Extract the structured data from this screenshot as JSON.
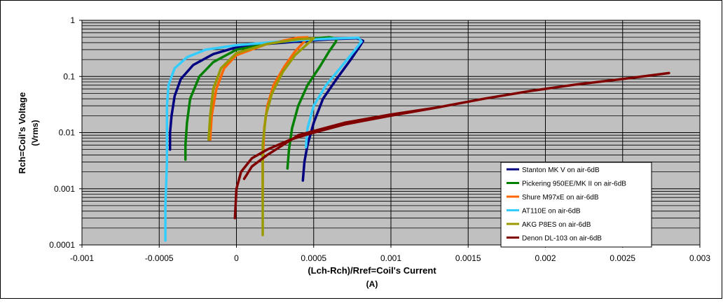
{
  "chart_data": {
    "type": "line",
    "title": "",
    "xlabel_line1": "(Lch-Rch)/Rref=Coil's Current",
    "xlabel_line2": "(A)",
    "ylabel_line1": "Rch=Coil's Voltage",
    "ylabel_line2": "(Vrms)",
    "x_scale": "linear",
    "y_scale": "log",
    "xlim": [
      -0.001,
      0.003
    ],
    "ylim": [
      0.0001,
      1
    ],
    "x_ticks": [
      "-0.001",
      "-0.0005",
      "0",
      "0.0005",
      "0.001",
      "0.0015",
      "0.002",
      "0.0025",
      "0.003"
    ],
    "x_tick_values": [
      -0.001,
      -0.0005,
      0,
      0.0005,
      0.001,
      0.0015,
      0.002,
      0.0025,
      0.003
    ],
    "y_ticks": [
      "1",
      "0.1",
      "0.01",
      "0.001",
      "0.0001"
    ],
    "y_tick_values": [
      1,
      0.1,
      0.01,
      0.001,
      0.0001
    ],
    "grid": "major and minor horizontal, major vertical",
    "legend_position": "bottom-right inside plot",
    "plot_background": "#c0c0c0",
    "series": [
      {
        "name": "Stanton MK V on air-6dB",
        "color": "#000080",
        "points": [
          [
            0.00043,
            0.0014
          ],
          [
            0.00044,
            0.003
          ],
          [
            0.00046,
            0.006
          ],
          [
            0.0005,
            0.015
          ],
          [
            0.00056,
            0.04
          ],
          [
            0.00066,
            0.1
          ],
          [
            0.00074,
            0.2
          ],
          [
            0.0008,
            0.35
          ],
          [
            0.00082,
            0.43
          ],
          [
            0.00078,
            0.48
          ],
          [
            0.0006,
            0.46
          ],
          [
            0.0004,
            0.42
          ],
          [
            0.0002,
            0.38
          ],
          [
            0.0,
            0.33
          ],
          [
            -0.00015,
            0.25
          ],
          [
            -0.00028,
            0.16
          ],
          [
            -0.00036,
            0.09
          ],
          [
            -0.0004,
            0.045
          ],
          [
            -0.00042,
            0.02
          ],
          [
            -0.00043,
            0.01
          ],
          [
            -0.00043,
            0.005
          ]
        ]
      },
      {
        "name": "Pickering 950EE/MK II on air-6dB",
        "color": "#008000",
        "points": [
          [
            0.00033,
            0.0023
          ],
          [
            0.00034,
            0.005
          ],
          [
            0.00036,
            0.012
          ],
          [
            0.0004,
            0.03
          ],
          [
            0.00046,
            0.07
          ],
          [
            0.00054,
            0.15
          ],
          [
            0.0006,
            0.28
          ],
          [
            0.00064,
            0.4
          ],
          [
            0.00065,
            0.47
          ],
          [
            0.0006,
            0.5
          ],
          [
            0.0004,
            0.45
          ],
          [
            0.0002,
            0.38
          ],
          [
            0.0,
            0.3
          ],
          [
            -0.00015,
            0.18
          ],
          [
            -0.00024,
            0.1
          ],
          [
            -0.0003,
            0.04
          ],
          [
            -0.00032,
            0.015
          ],
          [
            -0.00033,
            0.006
          ],
          [
            -0.00033,
            0.0033
          ]
        ]
      },
      {
        "name": "Shure M97xE on air-6dB",
        "color": "#ff6600",
        "points": [
          [
            0.00017,
            0.0006
          ],
          [
            0.00017,
            0.003
          ],
          [
            0.00018,
            0.012
          ],
          [
            0.0002,
            0.03
          ],
          [
            0.00024,
            0.07
          ],
          [
            0.00031,
            0.15
          ],
          [
            0.00038,
            0.28
          ],
          [
            0.00044,
            0.42
          ],
          [
            0.00046,
            0.5
          ],
          [
            0.0004,
            0.49
          ],
          [
            0.0002,
            0.38
          ],
          [
            0.0,
            0.24
          ],
          [
            -8e-05,
            0.14
          ],
          [
            -0.00013,
            0.06
          ],
          [
            -0.00016,
            0.02
          ],
          [
            -0.00017,
            0.0075
          ]
        ]
      },
      {
        "name": "AT110E on air-6dB",
        "color": "#33ccff",
        "points": [
          [
            0.00045,
            0.0055
          ],
          [
            0.00046,
            0.012
          ],
          [
            0.0005,
            0.03
          ],
          [
            0.00058,
            0.07
          ],
          [
            0.00068,
            0.15
          ],
          [
            0.00076,
            0.28
          ],
          [
            0.00081,
            0.42
          ],
          [
            0.00079,
            0.49
          ],
          [
            0.0006,
            0.47
          ],
          [
            0.0004,
            0.44
          ],
          [
            0.0002,
            0.4
          ],
          [
            0.0,
            0.36
          ],
          [
            -0.0002,
            0.3
          ],
          [
            -0.00032,
            0.22
          ],
          [
            -0.0004,
            0.14
          ],
          [
            -0.00044,
            0.07
          ],
          [
            -0.00045,
            0.03
          ],
          [
            -0.00045,
            0.01
          ],
          [
            -0.00045,
            0.003
          ],
          [
            -0.00046,
            0.0005
          ],
          [
            -0.00046,
            0.00012
          ]
        ]
      },
      {
        "name": "AKG P8ES on air-6dB",
        "color": "#999900",
        "points": [
          [
            0.00017,
            0.00015
          ],
          [
            0.00017,
            0.001
          ],
          [
            0.00017,
            0.006
          ],
          [
            0.00019,
            0.02
          ],
          [
            0.00023,
            0.05
          ],
          [
            0.0003,
            0.12
          ],
          [
            0.00038,
            0.24
          ],
          [
            0.00046,
            0.38
          ],
          [
            0.0005,
            0.48
          ],
          [
            0.0004,
            0.46
          ],
          [
            0.0002,
            0.38
          ],
          [
            0.0,
            0.26
          ],
          [
            -0.0001,
            0.14
          ],
          [
            -0.00015,
            0.06
          ],
          [
            -0.00017,
            0.02
          ],
          [
            -0.00018,
            0.0075
          ]
        ]
      },
      {
        "name": "Denon DL-103 on air-6dB",
        "color": "#800000",
        "points": [
          [
            -1e-05,
            0.0003
          ],
          [
            0.0,
            0.001
          ],
          [
            3e-05,
            0.002
          ],
          [
            0.0001,
            0.0035
          ],
          [
            0.0002,
            0.005
          ],
          [
            0.00035,
            0.0075
          ],
          [
            0.0005,
            0.01
          ],
          [
            0.0007,
            0.014
          ],
          [
            0.001,
            0.02
          ],
          [
            0.0013,
            0.028
          ],
          [
            0.0016,
            0.04
          ],
          [
            0.0019,
            0.055
          ],
          [
            0.0022,
            0.072
          ],
          [
            0.0025,
            0.09
          ],
          [
            0.0028,
            0.115
          ],
          [
            0.0025,
            0.09
          ],
          [
            0.0022,
            0.072
          ],
          [
            0.0019,
            0.055
          ],
          [
            0.0016,
            0.04
          ],
          [
            0.0013,
            0.028
          ],
          [
            0.001,
            0.021
          ],
          [
            0.0007,
            0.015
          ],
          [
            0.0004,
            0.009
          ],
          [
            0.0002,
            0.004
          ],
          [
            0.0001,
            0.0025
          ],
          [
            5e-05,
            0.0015
          ]
        ]
      }
    ]
  }
}
